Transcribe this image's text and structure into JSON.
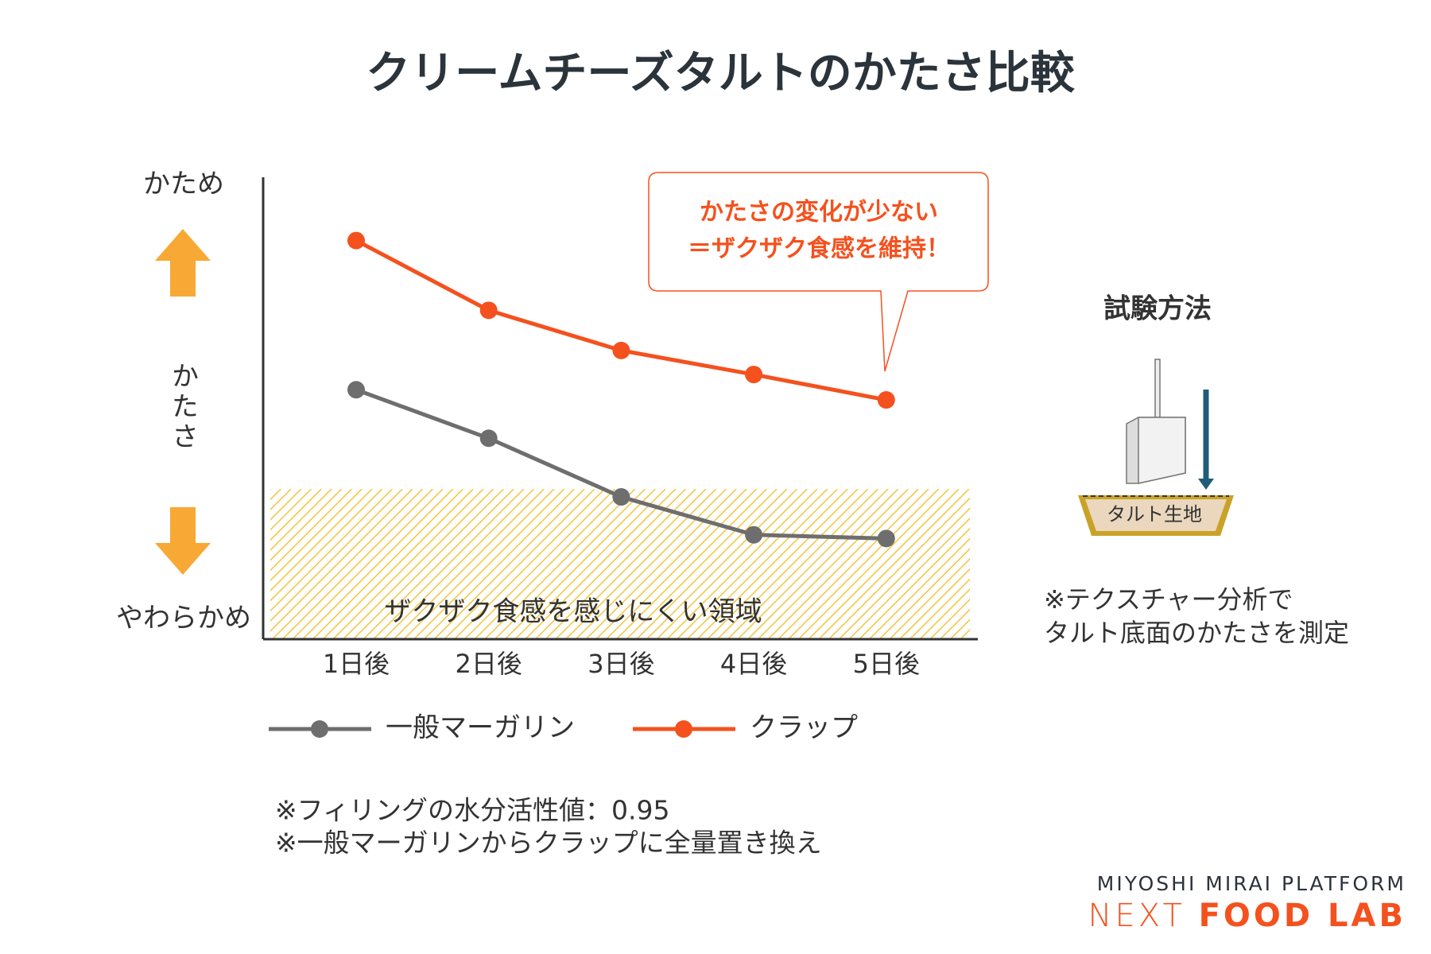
{
  "chart_data": {
    "type": "line",
    "title": "クリームチーズタルトのかたさ比較",
    "y_axis_label": "かたさ",
    "y_top_label": "かため",
    "y_bottom_label": "やわらかめ",
    "categories": [
      "1日後",
      "2日後",
      "3日後",
      "4日後",
      "5日後"
    ],
    "ylim": [
      0,
      100
    ],
    "region": {
      "label": "ザクザク食感を感じにくい領域",
      "upper": 32.5,
      "color": "#f2c53d"
    },
    "callout": [
      "かたさの変化が少ない",
      "＝ザクザク食感を維持！"
    ],
    "series": [
      {
        "name": "一般マーガリン",
        "color": "#6e6e6e",
        "values": [
          54.0,
          43.5,
          30.8,
          22.6,
          21.8
        ]
      },
      {
        "name": "クラップ",
        "color": "#f4511e",
        "values": [
          86.3,
          71.2,
          62.5,
          57.3,
          51.8
        ]
      }
    ],
    "notes": [
      "※フィリングの水分活性値：0.95",
      "※一般マーガリンからクラップに全量置き換え"
    ]
  },
  "method": {
    "title": "試験方法",
    "diagram_label": "タルト生地",
    "notes": [
      "※テクスチャー分析で",
      "タルト底面のかたさを測定"
    ]
  },
  "logo": {
    "line1": "MIYOSHI MIRAI PLATFORM",
    "line2_a": "NEXT",
    "line2_b": "FOOD LAB"
  }
}
